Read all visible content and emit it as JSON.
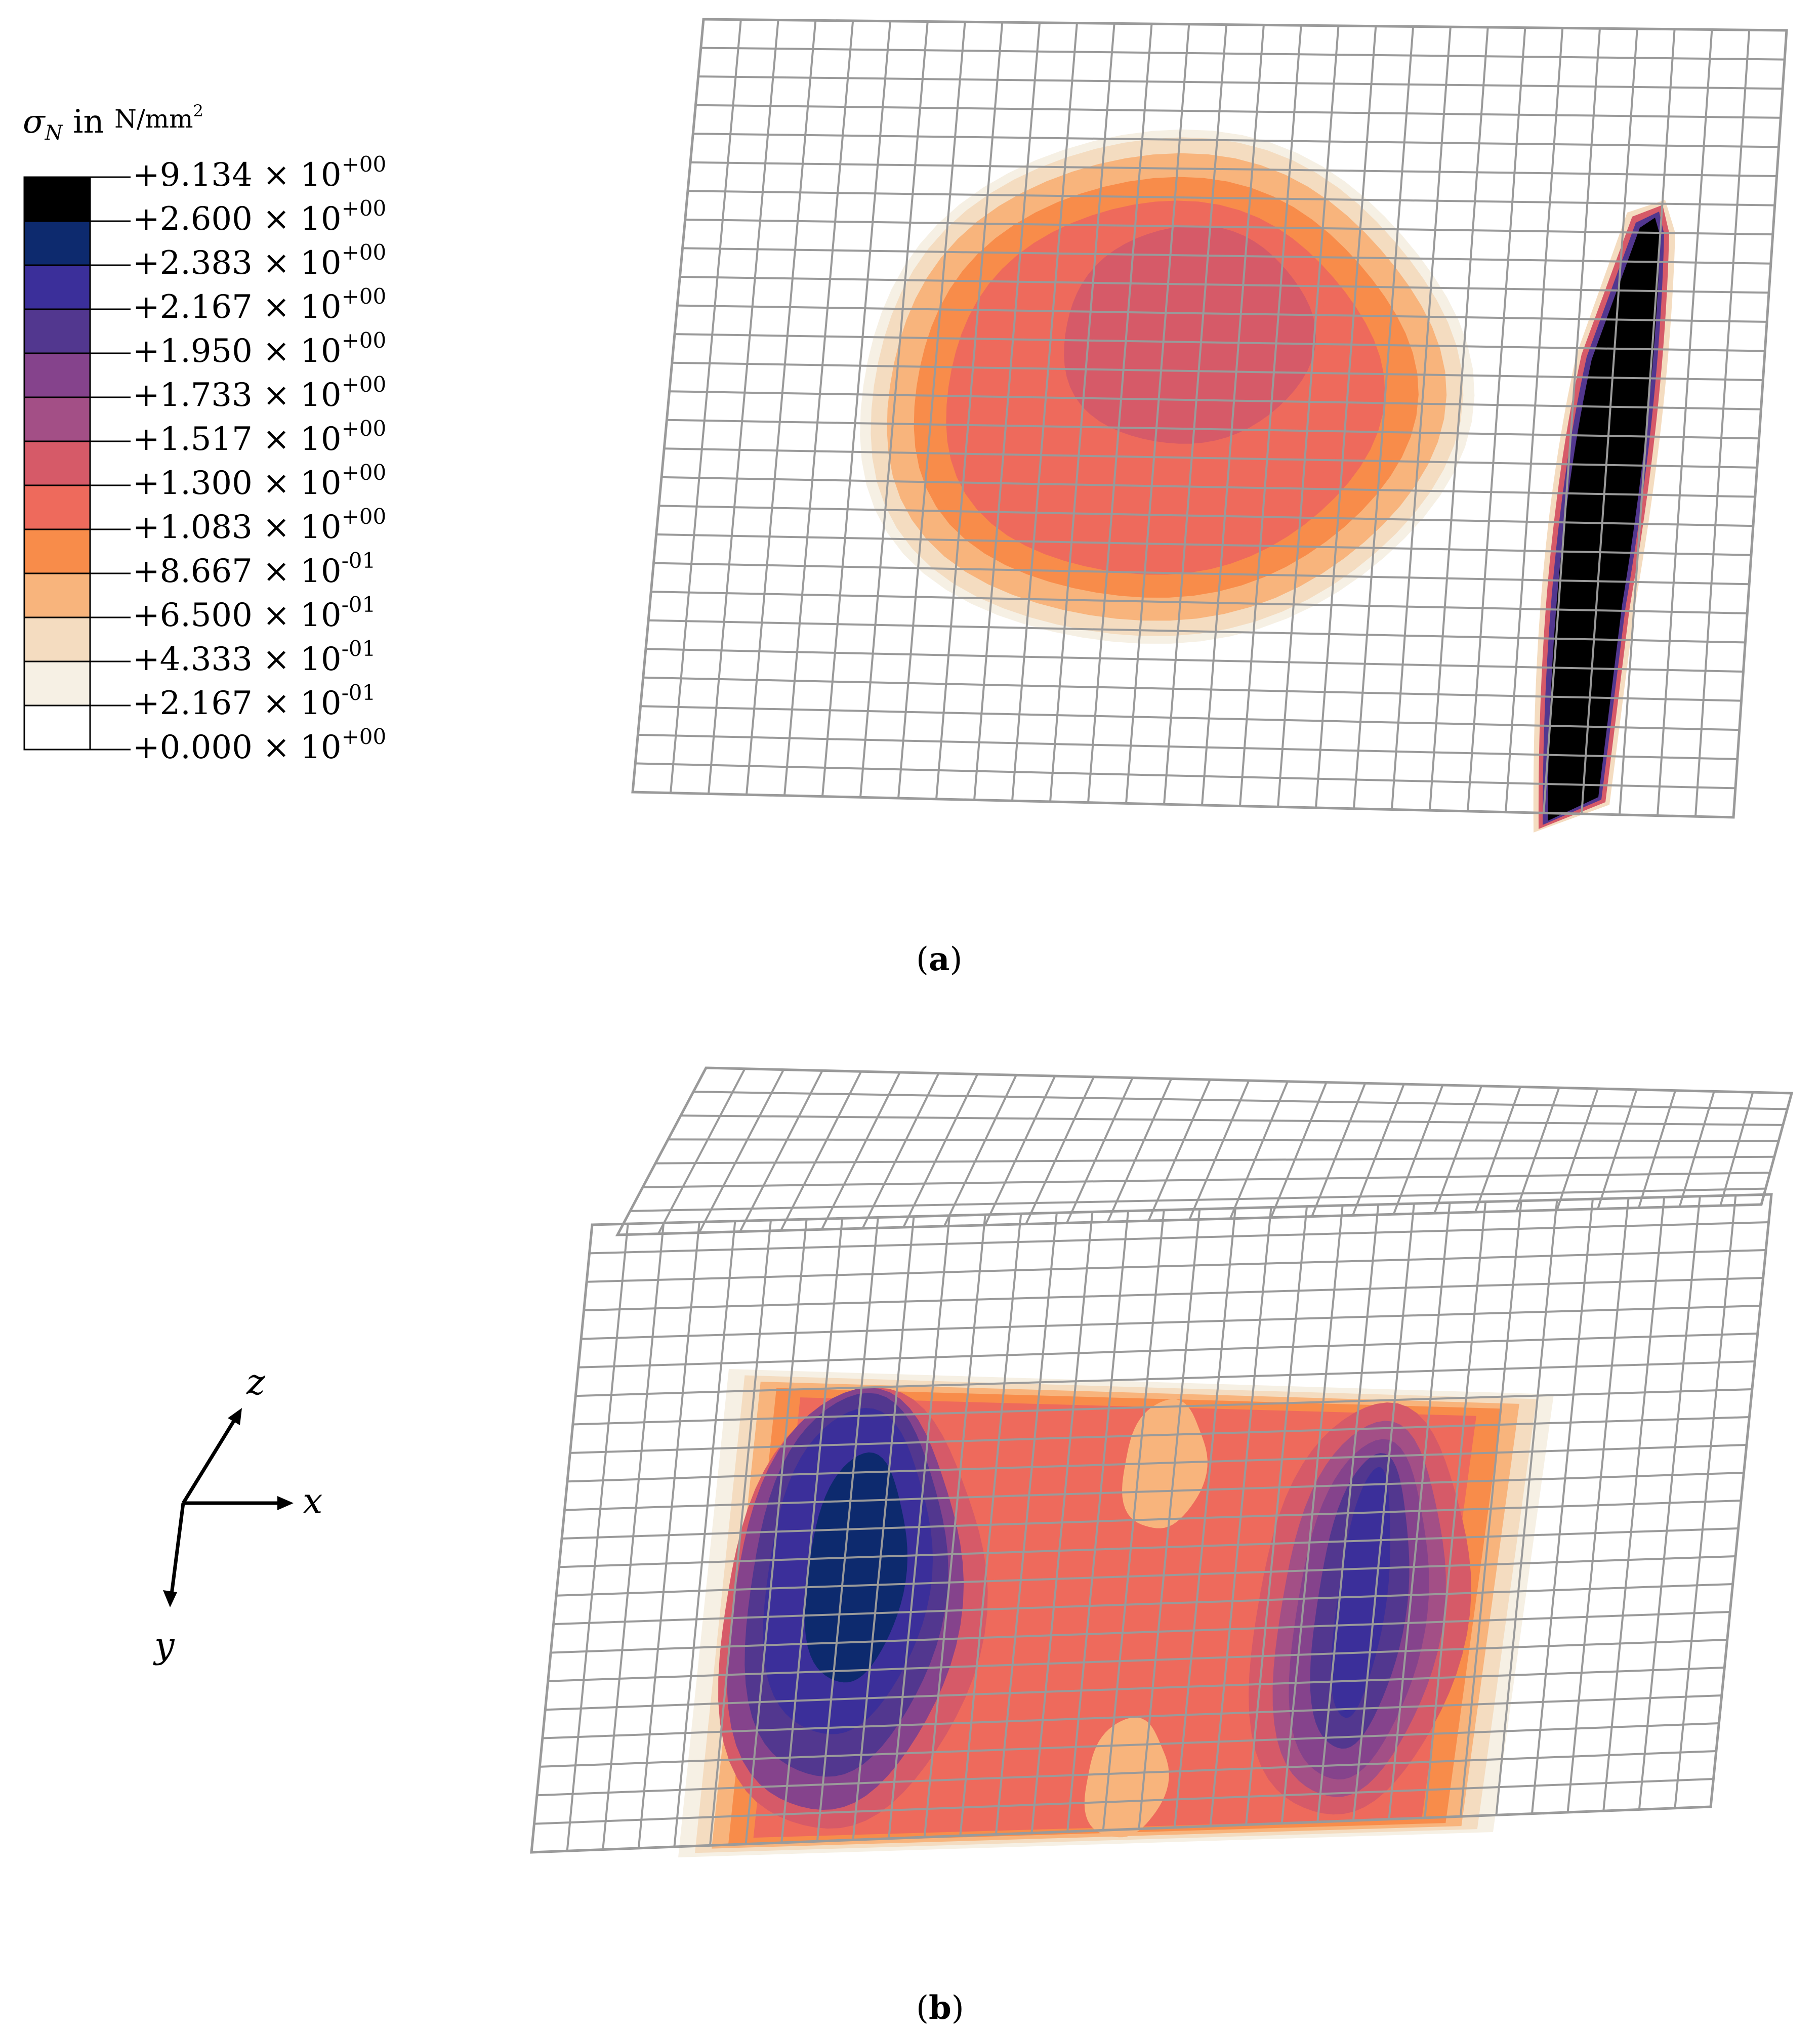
{
  "legend": {
    "title_symbol": "σ",
    "title_subscript": "N",
    "title_word": "in",
    "title_unit": "N/mm",
    "title_unit_power": "2",
    "entries": [
      {
        "mantissa": "+9.134 × 10",
        "exponent": "+00",
        "color": "#000000"
      },
      {
        "mantissa": "+2.600 × 10",
        "exponent": "+00",
        "color": "#0d2a6e"
      },
      {
        "mantissa": "+2.383 × 10",
        "exponent": "+00",
        "color": "#3b2f9a"
      },
      {
        "mantissa": "+2.167 × 10",
        "exponent": "+00",
        "color": "#52378f"
      },
      {
        "mantissa": "+1.950 × 10",
        "exponent": "+00",
        "color": "#85438c"
      },
      {
        "mantissa": "+1.733 × 10",
        "exponent": "+00",
        "color": "#a34f86"
      },
      {
        "mantissa": "+1.517 × 10",
        "exponent": "+00",
        "color": "#d65a68"
      },
      {
        "mantissa": "+1.300 × 10",
        "exponent": "+00",
        "color": "#ee6a5c"
      },
      {
        "mantissa": "+1.083 × 10",
        "exponent": "+00",
        "color": "#f88c4a"
      },
      {
        "mantissa": "+8.667 × 10",
        "exponent": "-01",
        "color": "#f8b47c"
      },
      {
        "mantissa": "+6.500 × 10",
        "exponent": "-01",
        "color": "#f4dcc0"
      },
      {
        "mantissa": "+4.333 × 10",
        "exponent": "-01",
        "color": "#f6f0e4"
      },
      {
        "mantissa": "+2.167 × 10",
        "exponent": "-01",
        "color": "#ffffff"
      },
      {
        "mantissa": "+0.000 × 10",
        "exponent": "+00",
        "color": null
      }
    ]
  },
  "panels": {
    "a": {
      "caption_open": "(",
      "caption_letter": "a",
      "caption_close": ")"
    },
    "b": {
      "caption_open": "(",
      "caption_letter": "b",
      "caption_close": ")"
    }
  },
  "axes_triad": {
    "x": "x",
    "y": "y",
    "z": "z"
  },
  "colors": {
    "mesh_line": "#9a9a9a",
    "background": "#ffffff"
  }
}
